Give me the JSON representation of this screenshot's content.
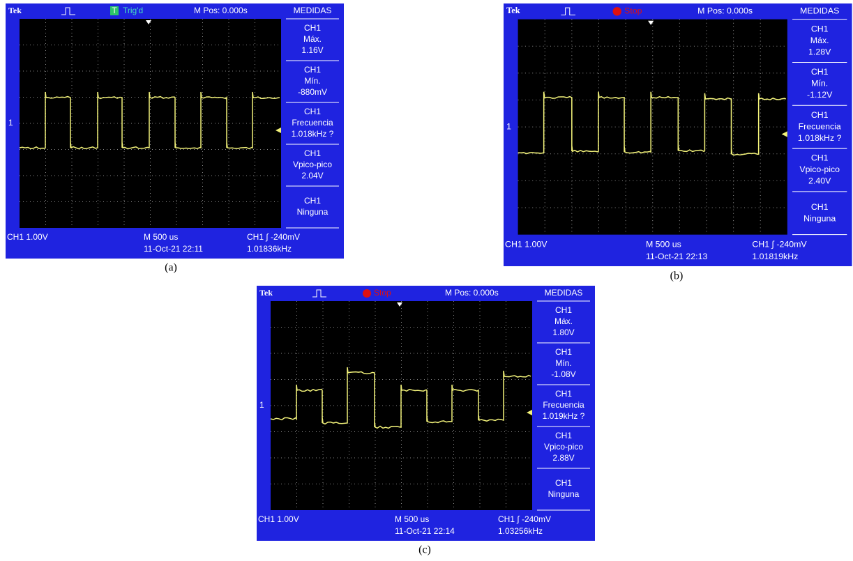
{
  "panels": [
    {
      "header": {
        "brand": "Tek",
        "status_icon": "T",
        "status": "Trig'd",
        "position": "M Pos: 0.000s",
        "menu": "MEDIDAS"
      },
      "measurements": [
        {
          "channel": "CH1",
          "name": "Máx.",
          "value": "1.16V"
        },
        {
          "channel": "CH1",
          "name": "Mín.",
          "value": "-880mV"
        },
        {
          "channel": "CH1",
          "name": "Frecuencia",
          "value": "1.018kHz ?"
        },
        {
          "channel": "CH1",
          "name": "Vpico-pico",
          "value": "2.04V"
        },
        {
          "channel": "CH1",
          "name": "Ninguna"
        }
      ],
      "marker": "1",
      "footer": {
        "channel": "CH1  1.00V",
        "timebase": "M 500 us",
        "date": "11-Oct-21 22:11",
        "trigger": "CH1 ∫ -240mV",
        "frequency": "1.01836kHz"
      },
      "caption": "(a)"
    },
    {
      "header": {
        "brand": "Tek",
        "status": "Stop",
        "position": "M Pos: 0.000s",
        "menu": "MEDIDAS"
      },
      "measurements": [
        {
          "channel": "CH1",
          "name": "Máx.",
          "value": "1.28V"
        },
        {
          "channel": "CH1",
          "name": "Mín.",
          "value": "-1.12V"
        },
        {
          "channel": "CH1",
          "name": "Frecuencia",
          "value": "1.018kHz ?"
        },
        {
          "channel": "CH1",
          "name": "Vpico-pico",
          "value": "2.40V"
        },
        {
          "channel": "CH1",
          "name": "Ninguna"
        }
      ],
      "marker": "1",
      "footer": {
        "channel": "CH1  1.00V",
        "timebase": "M 500 us",
        "date": "11-Oct-21 22:13",
        "trigger": "CH1 ∫ -240mV",
        "frequency": "1.01819kHz"
      },
      "caption": "(b)"
    },
    {
      "header": {
        "brand": "Tek",
        "status": "Stop",
        "position": "M Pos: 0.000s",
        "menu": "MEDIDAS"
      },
      "measurements": [
        {
          "channel": "CH1",
          "name": "Máx.",
          "value": "1.80V"
        },
        {
          "channel": "CH1",
          "name": "Mín.",
          "value": "-1.08V"
        },
        {
          "channel": "CH1",
          "name": "Frecuencia",
          "value": "1.019kHz ?"
        },
        {
          "channel": "CH1",
          "name": "Vpico-pico",
          "value": "2.88V"
        },
        {
          "channel": "CH1",
          "name": "Ninguna"
        }
      ],
      "marker": "1",
      "footer": {
        "channel": "CH1  1.00V",
        "timebase": "M 500 us",
        "date": "11-Oct-21 22:14",
        "trigger": "CH1 ∫ -240mV",
        "frequency": "1.03256kHz"
      },
      "caption": "(c)"
    }
  ]
}
